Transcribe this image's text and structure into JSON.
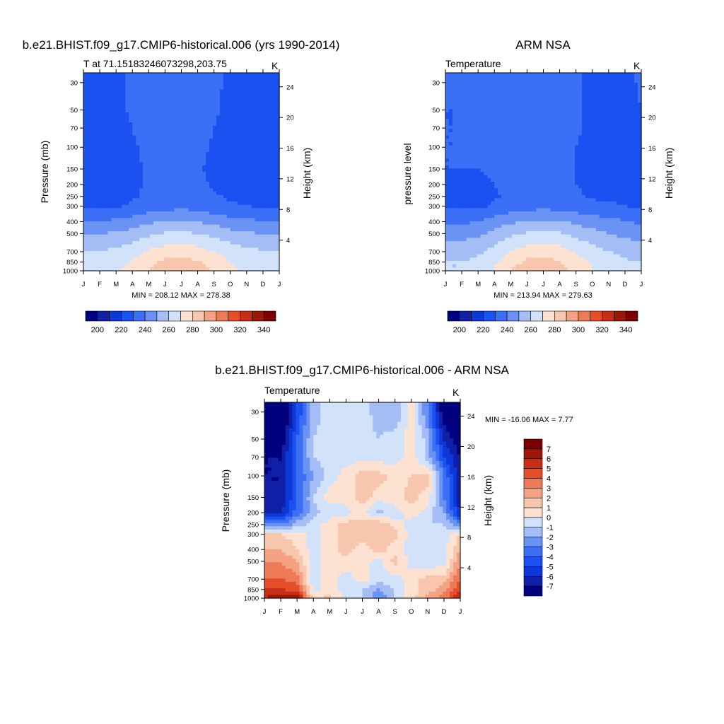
{
  "colors": {
    "abs_levels": [
      "#00007f",
      "#0f1fa8",
      "#0e37d7",
      "#1a51f0",
      "#3b6ff5",
      "#6a92f3",
      "#a5bdf5",
      "#d2e2fb",
      "#fde2d2",
      "#f8c6ad",
      "#f4a282",
      "#ef7a57",
      "#e64d29",
      "#c82d16",
      "#9c1708",
      "#7a0000"
    ],
    "diff_levels": [
      "#00007f",
      "#0f1fa8",
      "#0e37d7",
      "#1a51f0",
      "#3b6ff5",
      "#6a92f3",
      "#a5bdf5",
      "#d2e2fb",
      "#fde2d2",
      "#f8c6ad",
      "#f4a282",
      "#ef7a57",
      "#e64d29",
      "#c82d16",
      "#9c1708",
      "#7a0000"
    ]
  },
  "chart_data": [
    {
      "type": "heatmap",
      "title": "b.e21.BHIST.f09_g17.CMIP6-historical.006 (yrs 1990-2014)",
      "subtitle_left": "T at 71.15183246073298,203.75",
      "subtitle_right": "K",
      "ylabel": "Pressure (mb)",
      "ylabel_right": "Height (km)",
      "stat": "MIN = 208.12 MAX = 278.38",
      "months": [
        "J",
        "F",
        "M",
        "A",
        "M",
        "J",
        "J",
        "A",
        "S",
        "O",
        "N",
        "D",
        "J"
      ],
      "pressure_ticks": [
        30,
        50,
        70,
        100,
        150,
        200,
        250,
        300,
        400,
        500,
        700,
        850,
        1000
      ],
      "height_ticks": [
        4,
        8,
        12,
        16,
        20,
        24
      ],
      "colorbar_labels": [
        "200",
        "220",
        "240",
        "260",
        "280",
        "300",
        "320",
        "340"
      ],
      "pressure_levels": [
        30,
        50,
        70,
        100,
        150,
        200,
        250,
        300,
        400,
        500,
        700,
        850,
        1000
      ],
      "values": [
        [
          212,
          214,
          218,
          221,
          224,
          224,
          225,
          224,
          222,
          218,
          214,
          211,
          212
        ],
        [
          214,
          215,
          218,
          221,
          224,
          225,
          225,
          224,
          221,
          218,
          215,
          213,
          214
        ],
        [
          214,
          215,
          218,
          220,
          223,
          225,
          225,
          224,
          220,
          217,
          215,
          214,
          214
        ],
        [
          215,
          215,
          217,
          219,
          222,
          224,
          224,
          222,
          219,
          216,
          215,
          215,
          215
        ],
        [
          215,
          215,
          216,
          218,
          221,
          223,
          223,
          221,
          218,
          216,
          215,
          215,
          215
        ],
        [
          216,
          216,
          216,
          218,
          221,
          223,
          223,
          222,
          219,
          217,
          216,
          216,
          216
        ],
        [
          217,
          217,
          217,
          219,
          222,
          224,
          224,
          223,
          221,
          219,
          218,
          217,
          217
        ],
        [
          218,
          218,
          219,
          221,
          224,
          226,
          227,
          226,
          223,
          221,
          220,
          219,
          218
        ],
        [
          231,
          231,
          232,
          235,
          238,
          241,
          242,
          240,
          237,
          234,
          232,
          231,
          231
        ],
        [
          240,
          240,
          241,
          244,
          248,
          251,
          252,
          250,
          247,
          243,
          241,
          240,
          240
        ],
        [
          251,
          251,
          252,
          256,
          261,
          265,
          266,
          264,
          260,
          256,
          253,
          251,
          251
        ],
        [
          256,
          256,
          257,
          261,
          267,
          272,
          274,
          271,
          265,
          260,
          257,
          256,
          256
        ],
        [
          257,
          257,
          258,
          263,
          270,
          276,
          278,
          275,
          268,
          262,
          258,
          257,
          257
        ]
      ]
    },
    {
      "type": "heatmap",
      "title": "ARM NSA",
      "subtitle_left": "Temperature",
      "subtitle_right": "K",
      "ylabel": "pressure level",
      "ylabel_right": "Height (km)",
      "stat": "MIN = 213.94 MAX = 279.63",
      "months": [
        "J",
        "F",
        "M",
        "A",
        "M",
        "J",
        "J",
        "A",
        "S",
        "O",
        "N",
        "D",
        "J"
      ],
      "pressure_ticks": [
        30,
        50,
        70,
        100,
        150,
        200,
        250,
        300,
        400,
        500,
        700,
        850,
        1000
      ],
      "height_ticks": [
        4,
        8,
        12,
        16,
        20,
        24
      ],
      "colorbar_labels": [
        "200",
        "220",
        "240",
        "260",
        "280",
        "300",
        "320",
        "340"
      ],
      "pressure_levels": [
        30,
        50,
        70,
        100,
        150,
        200,
        250,
        300,
        400,
        500,
        700,
        850,
        1000
      ],
      "values": [
        [
          221,
          221,
          222,
          223,
          224,
          225,
          226,
          224,
          221,
          217,
          216,
          218,
          221
        ],
        [
          220,
          220,
          221,
          222,
          224,
          225,
          225,
          224,
          221,
          218,
          217,
          218,
          220
        ],
        [
          220,
          220,
          221,
          222,
          223,
          225,
          225,
          223,
          221,
          218,
          217,
          218,
          220
        ],
        [
          220,
          220,
          221,
          222,
          223,
          224,
          224,
          222,
          220,
          218,
          217,
          218,
          220
        ],
        [
          220,
          220,
          220,
          221,
          222,
          223,
          223,
          222,
          220,
          218,
          218,
          219,
          220
        ],
        [
          219,
          219,
          219,
          220,
          222,
          223,
          223,
          222,
          220,
          219,
          219,
          219,
          219
        ],
        [
          218,
          217,
          217,
          219,
          222,
          224,
          224,
          223,
          221,
          219,
          219,
          219,
          218
        ],
        [
          218,
          218,
          218,
          221,
          224,
          226,
          227,
          226,
          224,
          222,
          221,
          220,
          218
        ],
        [
          228,
          228,
          230,
          235,
          238,
          241,
          242,
          241,
          238,
          235,
          233,
          231,
          228
        ],
        [
          235,
          236,
          238,
          243,
          248,
          251,
          252,
          251,
          247,
          243,
          240,
          237,
          235
        ],
        [
          246,
          246,
          248,
          254,
          260,
          265,
          266,
          264,
          259,
          255,
          250,
          248,
          246
        ],
        [
          250,
          250,
          253,
          259,
          266,
          272,
          274,
          271,
          264,
          259,
          254,
          251,
          250
        ],
        [
          250,
          250,
          254,
          261,
          270,
          277,
          279,
          275,
          267,
          261,
          255,
          252,
          250
        ]
      ]
    },
    {
      "type": "heatmap",
      "title": "b.e21.BHIST.f09_g17.CMIP6-historical.006 - ARM NSA",
      "subtitle_left": "Temperature",
      "subtitle_right": "K",
      "ylabel": "Pressure (mb)",
      "ylabel_right": "Height (km)",
      "stat": "MIN = -16.06 MAX =   7.77",
      "months": [
        "J",
        "F",
        "M",
        "A",
        "M",
        "J",
        "J",
        "A",
        "S",
        "O",
        "N",
        "D",
        "J"
      ],
      "pressure_ticks": [
        30,
        50,
        70,
        100,
        150,
        200,
        250,
        300,
        400,
        500,
        700,
        850,
        1000
      ],
      "height_ticks": [
        4,
        8,
        12,
        16,
        20,
        24
      ],
      "colorbar_labels": [
        "7",
        "6",
        "5",
        "4",
        "3",
        "2",
        "1",
        "0",
        "-1",
        "-2",
        "-3",
        "-4",
        "-5",
        "-6",
        "-7"
      ],
      "pressure_levels": [
        30,
        50,
        70,
        100,
        150,
        200,
        250,
        300,
        400,
        500,
        700,
        850,
        1000
      ],
      "values": [
        [
          -9,
          -9,
          -5,
          -1.5,
          -0.5,
          -0.5,
          -0.5,
          -1.5,
          -2,
          0.5,
          -3,
          -8,
          -9
        ],
        [
          -8,
          -8,
          -4,
          -1,
          -0.5,
          -0.5,
          -0.5,
          -1,
          -0.5,
          0.5,
          -1.5,
          -6,
          -8
        ],
        [
          -7,
          -7,
          -4,
          -1,
          -0.5,
          -0.5,
          -0.5,
          -0.5,
          -0.5,
          0.5,
          -1.5,
          -5,
          -7
        ],
        [
          -7,
          -7,
          -4,
          -2,
          -0.5,
          0.5,
          1.5,
          1.5,
          0.5,
          1,
          1.5,
          -3,
          -7
        ],
        [
          -7,
          -7,
          -4,
          -1,
          0.5,
          0.5,
          1.5,
          0.5,
          0.5,
          1.5,
          0.5,
          -3,
          -7
        ],
        [
          -6,
          -6,
          -3.5,
          -1.5,
          -0.5,
          -0.5,
          0.5,
          -1.5,
          -0.5,
          0.5,
          -0.5,
          -2,
          -6
        ],
        [
          -3,
          -3,
          -1.5,
          -0.5,
          0.5,
          1.5,
          1.5,
          2,
          0.5,
          -0.5,
          -1,
          -1,
          -3
        ],
        [
          1,
          1,
          0.5,
          -0.5,
          0.5,
          1.5,
          1.5,
          1.5,
          1.5,
          -0.5,
          -0.5,
          -0.5,
          1
        ],
        [
          2,
          2,
          1,
          -0.5,
          0.5,
          1.5,
          0.5,
          1.5,
          0.5,
          -0.5,
          -1,
          -0.5,
          2
        ],
        [
          3,
          3,
          2,
          -0.5,
          0.5,
          0.5,
          0.5,
          -0.5,
          1.5,
          -0.5,
          -1,
          -0.5,
          3
        ],
        [
          4,
          4,
          3.5,
          -0.5,
          0.5,
          -0.5,
          0.5,
          -0.5,
          -0.5,
          0.5,
          1.5,
          1.5,
          4
        ],
        [
          5,
          5,
          4.5,
          -0.5,
          0.5,
          -0.5,
          -1,
          -2,
          -1,
          0.5,
          1.5,
          2.5,
          5
        ],
        [
          6,
          7,
          7.5,
          0.5,
          1.5,
          -0.5,
          -1,
          -3,
          -1,
          0.5,
          2.5,
          3.5,
          6
        ]
      ]
    }
  ]
}
